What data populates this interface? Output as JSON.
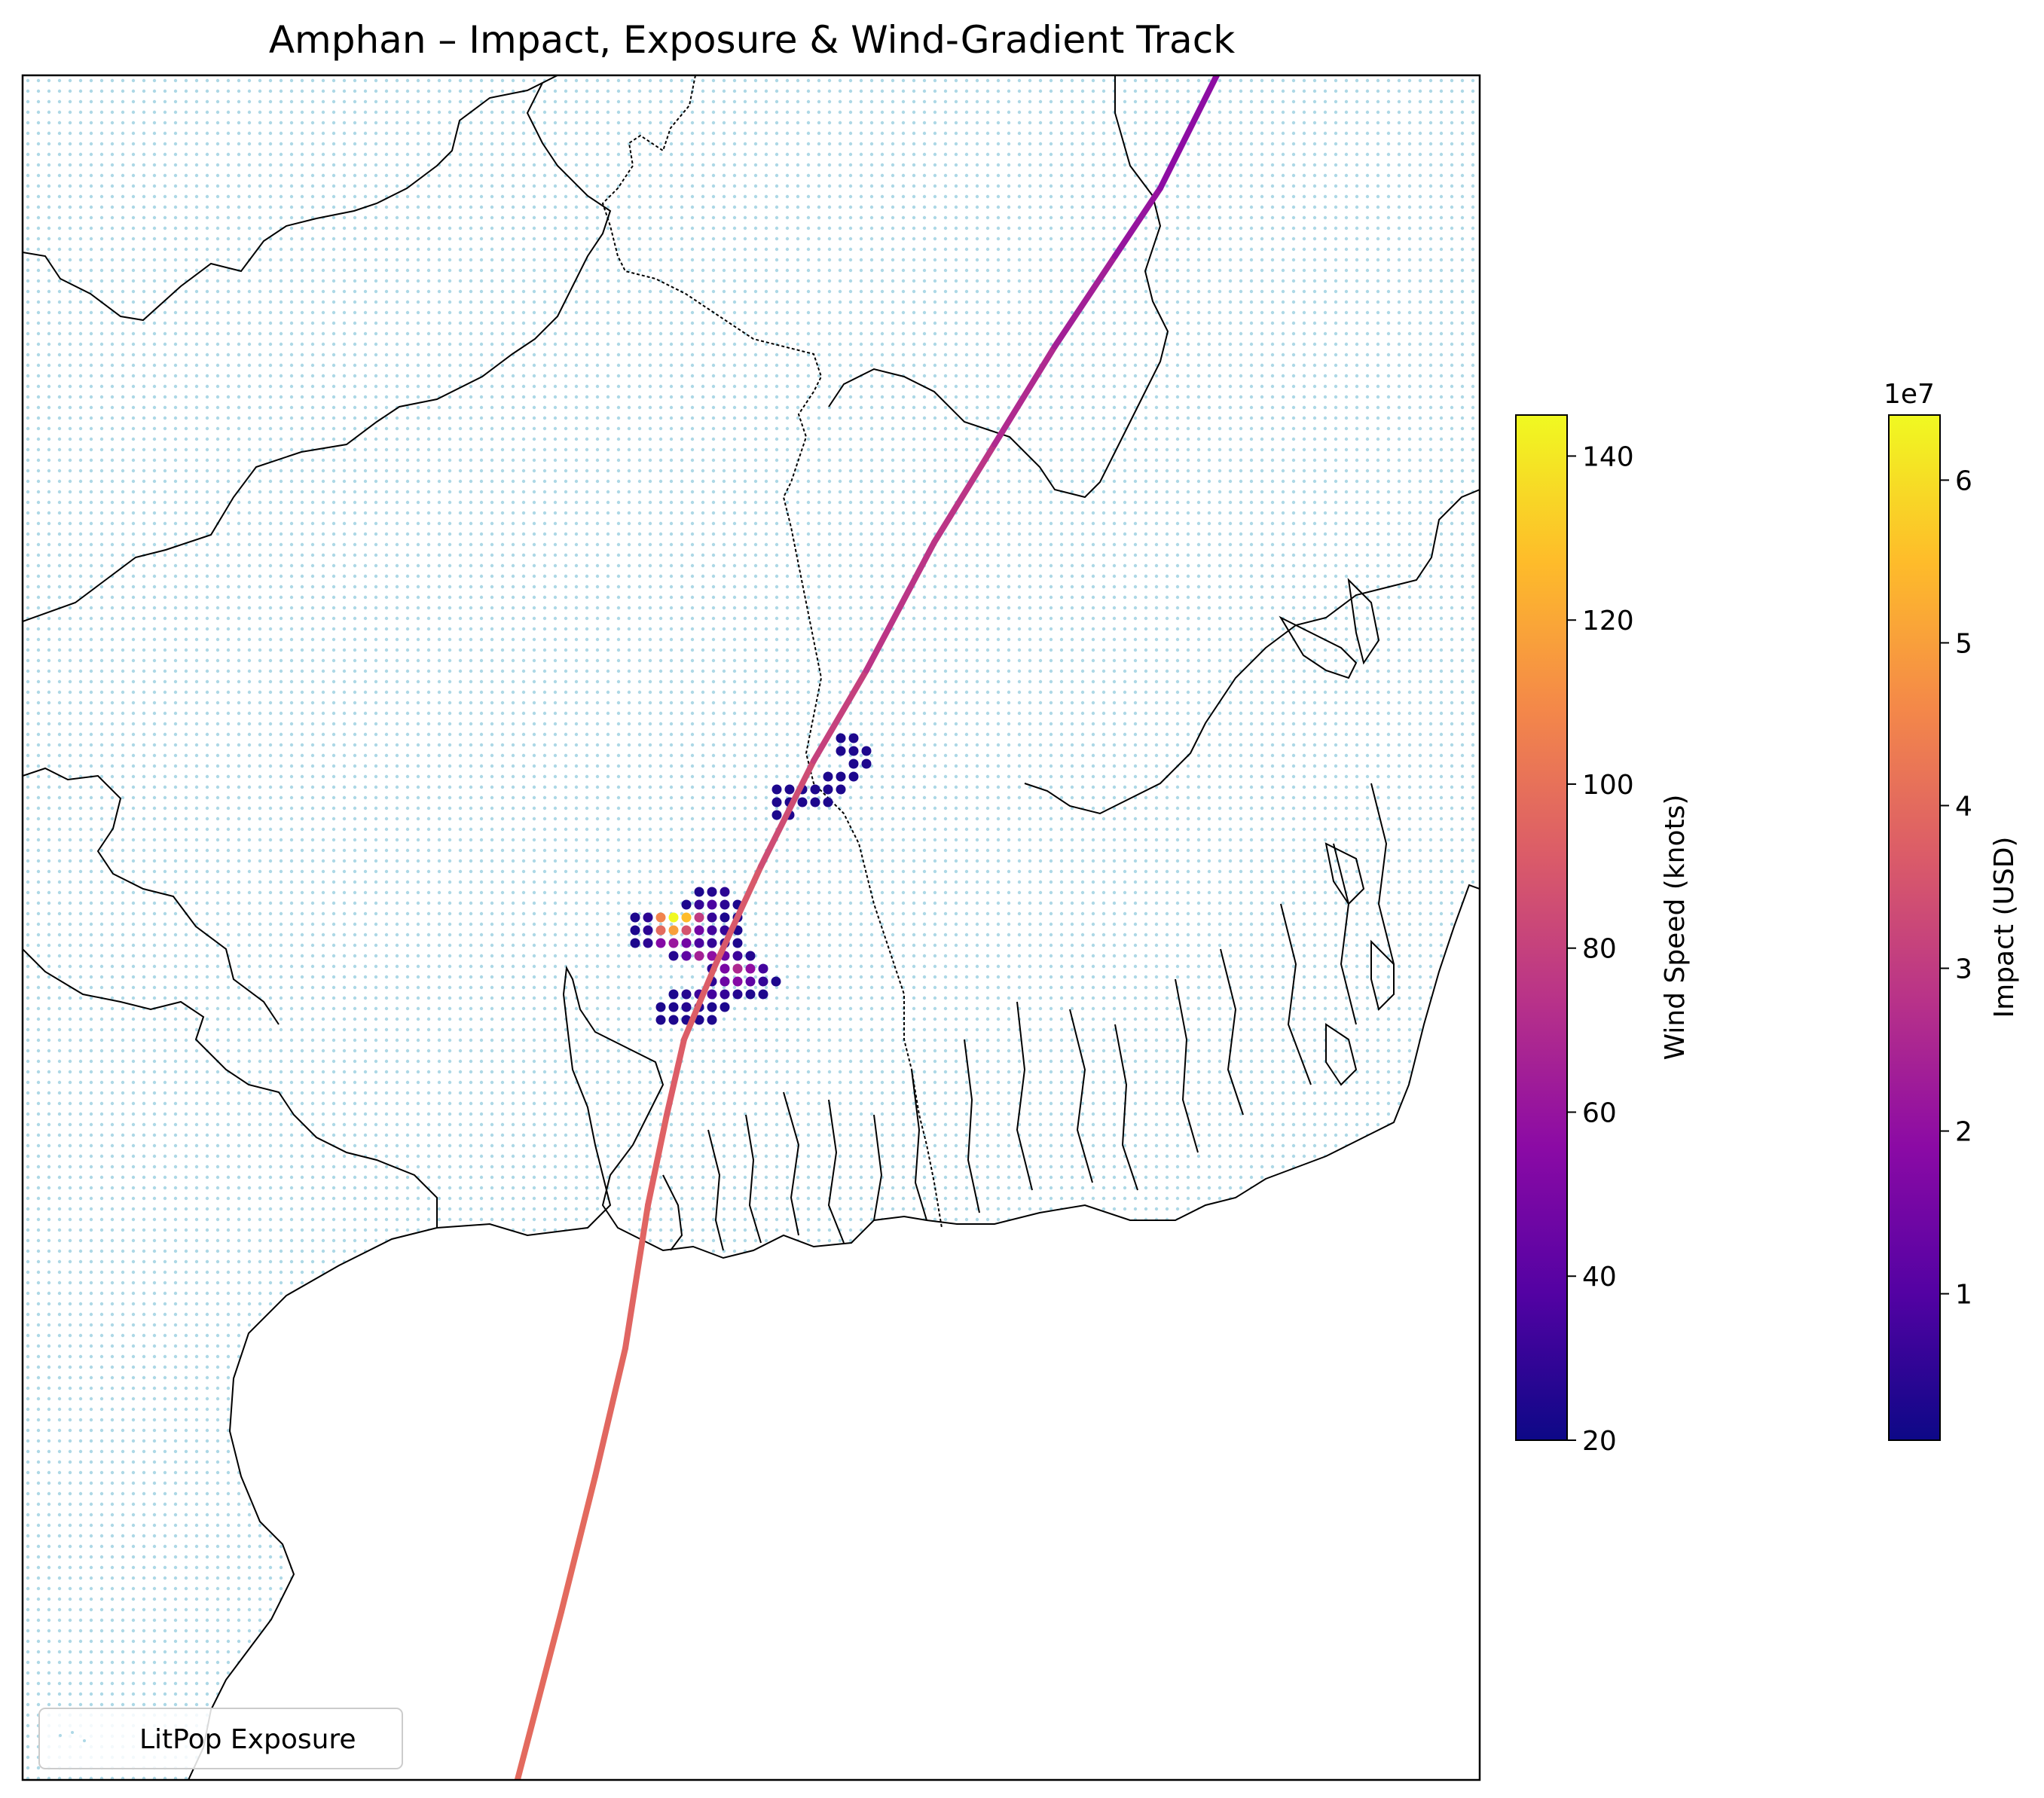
{
  "title": "Amphan – Impact, Exposure & Wind-Gradient Track",
  "legend": {
    "location": "lower-left",
    "entries": [
      {
        "label": "LitPop Exposure",
        "marker": "dot",
        "color": "#add8e6"
      }
    ]
  },
  "colorbars": [
    {
      "label": "Wind Speed (knots)",
      "colormap": "plasma",
      "range": [
        20,
        145
      ],
      "ticks": [
        {
          "value": 20,
          "label": "20"
        },
        {
          "value": 40,
          "label": "40"
        },
        {
          "value": 60,
          "label": "60"
        },
        {
          "value": 80,
          "label": "80"
        },
        {
          "value": 100,
          "label": "100"
        },
        {
          "value": 120,
          "label": "120"
        },
        {
          "value": 140,
          "label": "140"
        }
      ]
    },
    {
      "label": "Impact (USD)",
      "colormap": "plasma",
      "offset_text": "1e7",
      "range": [
        0.1,
        6.4
      ],
      "ticks": [
        {
          "value": 1,
          "label": "1"
        },
        {
          "value": 2,
          "label": "2"
        },
        {
          "value": 3,
          "label": "3"
        },
        {
          "value": 4,
          "label": "4"
        },
        {
          "value": 5,
          "label": "5"
        },
        {
          "value": 6,
          "label": "6"
        }
      ]
    }
  ],
  "colors": {
    "exposure": "#add8e6",
    "coastline": "#000000",
    "border": "#000000",
    "frame": "#000000",
    "plasma_stops": [
      "#0d0887",
      "#5302a3",
      "#8b0aa5",
      "#b83289",
      "#db5c68",
      "#f48849",
      "#febc2a",
      "#f0f921"
    ]
  },
  "chart_data": {
    "type": "map",
    "layers": [
      "LitPop exposure points",
      "impact points",
      "storm track colored by wind speed",
      "coastlines",
      "national borders"
    ],
    "track_wind_knots": [
      97,
      96,
      95,
      94,
      92,
      90,
      85,
      80,
      75,
      70,
      65,
      60,
      57
    ],
    "impact_values_usd_1e7": [
      [
        0.3,
        0.4,
        0.5
      ],
      [
        0.3,
        0.6,
        0.9,
        0.5,
        0.3
      ],
      [
        0.3,
        0.5,
        4.5,
        6.4,
        5.5,
        3.0,
        0.6,
        0.3,
        0.3
      ],
      [
        0.3,
        0.5,
        4.0,
        5.0,
        3.5,
        1.5,
        0.8,
        0.6,
        0.3
      ],
      [
        0.3,
        0.5,
        1.8,
        2.2,
        1.5,
        0.9,
        0.6,
        0.4,
        0.3
      ],
      [
        0.4,
        1.2,
        2.4,
        2.0,
        1.4,
        0.7,
        0.4
      ],
      [
        0.5,
        1.6,
        2.6,
        2.0,
        0.8
      ],
      [
        0.5,
        1.4,
        1.8,
        1.2,
        0.6,
        0.3
      ],
      [
        0.3,
        0.4,
        0.7,
        0.8,
        0.6,
        0.4,
        0.3,
        0.3
      ],
      [
        0.3,
        0.3,
        0.4,
        0.4,
        0.3,
        0.3
      ],
      [
        0.3,
        0.3,
        0.3,
        0.3,
        0.3
      ]
    ],
    "impact_ne_cluster_usd_1e7": [
      [
        0.3,
        0.3
      ],
      [
        0.3,
        0.3,
        0.3
      ],
      [
        0.3,
        0.3
      ],
      [
        0.3,
        0.3,
        0.3
      ],
      [
        0.3,
        0.3,
        0.3,
        0.3,
        0.3,
        0.3
      ],
      [
        0.3,
        0.3,
        0.3,
        0.3,
        0.3
      ],
      [
        0.3,
        0.3
      ]
    ]
  }
}
